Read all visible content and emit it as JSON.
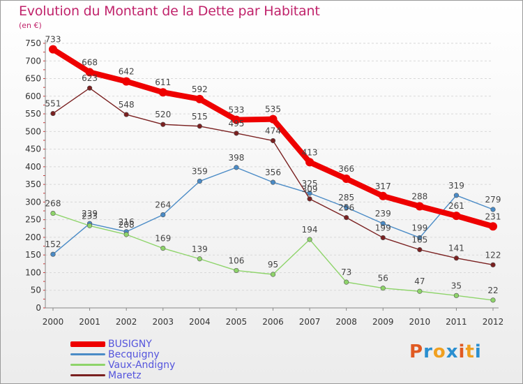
{
  "title": "Evolution du Montant de la Dette par Habitant",
  "unit": "(en €)",
  "logo_text": "Proxiti",
  "logo_colors": [
    "#e05a22",
    "#2a8fd0",
    "#f0a020",
    "#2a8fd0",
    "#e05a22",
    "#f0a020",
    "#2a8fd0"
  ],
  "chart_data": {
    "type": "line",
    "x": [
      "2000",
      "2001",
      "2002",
      "2003",
      "2004",
      "2005",
      "2006",
      "2007",
      "2008",
      "2009",
      "2010",
      "2011",
      "2012"
    ],
    "ylim": [
      0,
      750
    ],
    "yticks": [
      0,
      50,
      100,
      150,
      200,
      250,
      300,
      350,
      400,
      450,
      500,
      550,
      600,
      650,
      700,
      750
    ],
    "grid": true,
    "legend_position": "bottom-left",
    "series": [
      {
        "name": "BUSIGNY",
        "color": "#ee0000",
        "values": [
          733,
          668,
          642,
          611,
          592,
          533,
          535,
          413,
          366,
          317,
          288,
          261,
          231
        ],
        "labels": [
          "733",
          "668",
          "642",
          "611",
          "592",
          "533",
          "535",
          "413",
          "366",
          "317",
          "288",
          "261",
          "231"
        ]
      },
      {
        "name": "Becquigny",
        "color": "#4a8bc6",
        "values": [
          152,
          239,
          216,
          264,
          359,
          398,
          356,
          325,
          285,
          239,
          199,
          319,
          279
        ],
        "labels": [
          "152",
          "239",
          "216",
          "264",
          "359",
          "398",
          "356",
          "325",
          "285",
          "239",
          "199",
          "319",
          "279"
        ]
      },
      {
        "name": "Vaux-Andigny",
        "color": "#8ed46a",
        "values": [
          268,
          233,
          208,
          169,
          139,
          106,
          95,
          194,
          73,
          56,
          47,
          35,
          22
        ],
        "labels": [
          "268",
          "233",
          "208",
          "169",
          "139",
          "106",
          "95",
          "194",
          "73",
          "56",
          "47",
          "35",
          "22"
        ]
      },
      {
        "name": "Maretz",
        "color": "#7a2020",
        "values": [
          551,
          623,
          548,
          520,
          515,
          495,
          474,
          309,
          256,
          199,
          165,
          141,
          122
        ],
        "labels": [
          "551",
          "623",
          "548",
          "520",
          "515",
          "495",
          "474",
          "309",
          "256",
          "199",
          "165",
          "141",
          "122"
        ]
      }
    ]
  }
}
